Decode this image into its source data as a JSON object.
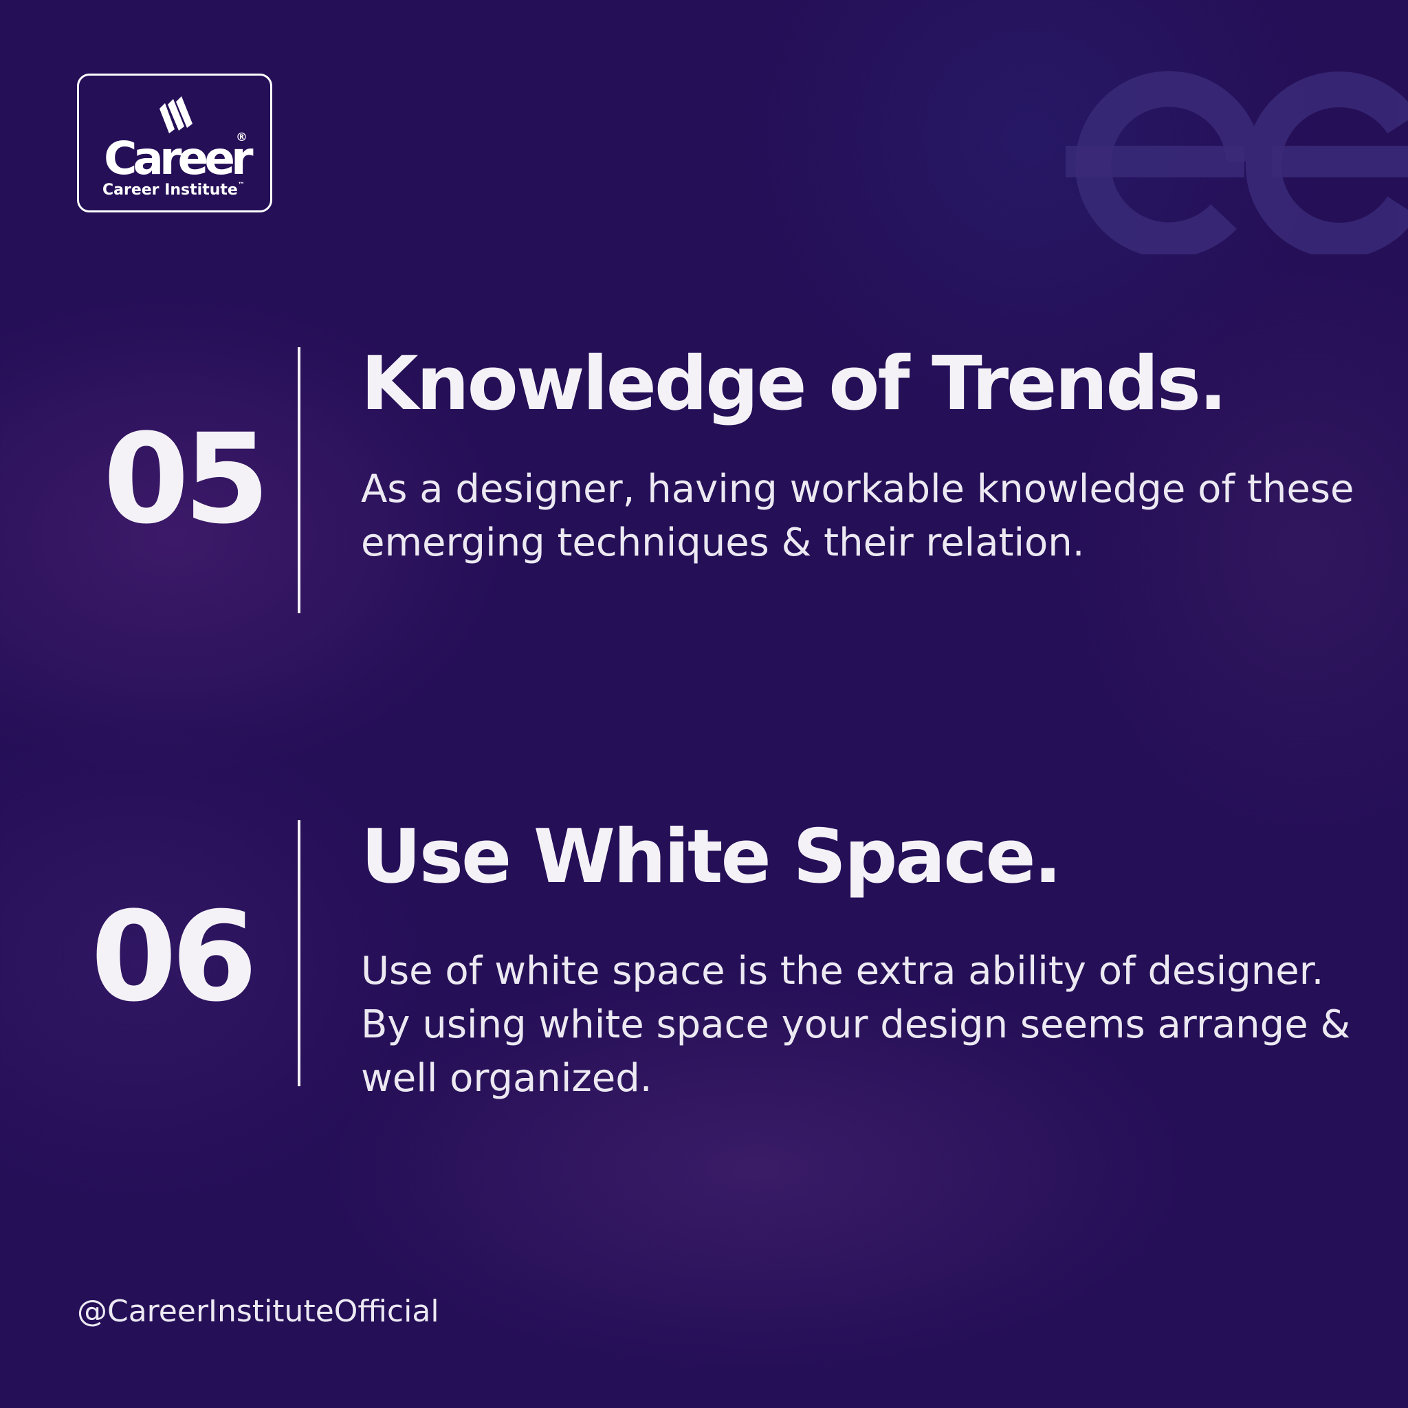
{
  "logo": {
    "wordmark": "Career",
    "registered": "®",
    "subtitle": "Career Institute",
    "trademark": "™"
  },
  "sections": [
    {
      "number": "05",
      "title": "Knowledge of Trends.",
      "description": "As a designer, having workable knowledge of these emerging techniques & their relation."
    },
    {
      "number": "06",
      "title": "Use White Space.",
      "description": "Use of white space is the extra ability of designer. By using white space your design seems arrange & well organized."
    }
  ],
  "footer": {
    "handle": "@CareerInstituteOfficial"
  },
  "colors": {
    "background": "#250f57",
    "text": "#f4f2f7"
  }
}
